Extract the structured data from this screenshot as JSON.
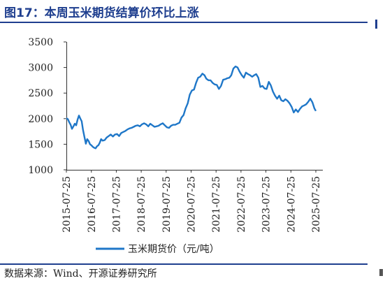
{
  "header": {
    "title": "图17：本周玉米期货结算价环比上涨"
  },
  "footer": {
    "source": "数据来源：Wind、开源证券研究所"
  },
  "chart_data": {
    "type": "line",
    "title": "图17：本周玉米期货结算价环比上涨",
    "xlabel": "",
    "ylabel": "",
    "ylim": [
      1000,
      3500
    ],
    "yticks": [
      "1000",
      "1500",
      "2000",
      "2500",
      "3000",
      "3500"
    ],
    "xlim": [
      "2015-07-25",
      "2025-07-25"
    ],
    "xticks": [
      "2015-07-25",
      "2016-07-25",
      "2017-07-25",
      "2018-07-25",
      "2019-07-25",
      "2020-07-25",
      "2021-07-25",
      "2022-07-25",
      "2023-07-25",
      "2024-07-25",
      "2025-07-25"
    ],
    "grid": false,
    "legend": "bottom",
    "series": [
      {
        "name": "玉米期货价（元/吨）",
        "color": "#1f77c8",
        "x": [
          "2015-07-25",
          "2015-08-15",
          "2015-09-05",
          "2015-09-25",
          "2015-10-15",
          "2015-11-05",
          "2015-11-25",
          "2015-12-15",
          "2016-01-05",
          "2016-01-25",
          "2016-02-15",
          "2016-03-05",
          "2016-03-25",
          "2016-04-15",
          "2016-05-05",
          "2016-05-25",
          "2016-06-15",
          "2016-07-05",
          "2016-07-25",
          "2016-08-15",
          "2016-09-05",
          "2016-09-25",
          "2016-10-15",
          "2016-11-05",
          "2016-11-25",
          "2016-12-15",
          "2017-01-05",
          "2017-02-05",
          "2017-03-05",
          "2017-04-05",
          "2017-05-05",
          "2017-06-05",
          "2017-07-05",
          "2017-08-05",
          "2017-09-05",
          "2017-10-05",
          "2017-11-05",
          "2017-12-05",
          "2018-01-05",
          "2018-02-05",
          "2018-03-05",
          "2018-04-05",
          "2018-05-05",
          "2018-06-05",
          "2018-07-05",
          "2018-08-05",
          "2018-09-05",
          "2018-10-05",
          "2018-11-05",
          "2018-12-05",
          "2019-01-05",
          "2019-02-05",
          "2019-03-05",
          "2019-04-05",
          "2019-05-05",
          "2019-06-05",
          "2019-07-05",
          "2019-08-05",
          "2019-09-05",
          "2019-10-05",
          "2019-11-05",
          "2019-12-05",
          "2020-01-05",
          "2020-02-05",
          "2020-03-05",
          "2020-04-05",
          "2020-05-05",
          "2020-06-05",
          "2020-07-05",
          "2020-08-05",
          "2020-09-05",
          "2020-10-05",
          "2020-11-05",
          "2020-12-05",
          "2021-01-05",
          "2021-02-05",
          "2021-03-05",
          "2021-04-05",
          "2021-05-05",
          "2021-06-05",
          "2021-07-05",
          "2021-08-05",
          "2021-09-05",
          "2021-10-05",
          "2021-11-05",
          "2021-12-05",
          "2022-01-05",
          "2022-02-05",
          "2022-03-05",
          "2022-04-05",
          "2022-05-05",
          "2022-06-05",
          "2022-07-05",
          "2022-08-05",
          "2022-09-05",
          "2022-10-05",
          "2022-11-05",
          "2022-12-05",
          "2023-01-05",
          "2023-02-05",
          "2023-03-05",
          "2023-04-05",
          "2023-05-05",
          "2023-06-05",
          "2023-07-05",
          "2023-08-05",
          "2023-09-05",
          "2023-10-05",
          "2023-11-05",
          "2023-12-05",
          "2024-01-05",
          "2024-02-05",
          "2024-03-05",
          "2024-04-05",
          "2024-05-05",
          "2024-06-05",
          "2024-07-05",
          "2024-08-05",
          "2024-09-05",
          "2024-10-05",
          "2024-11-05",
          "2024-12-05",
          "2025-01-05",
          "2025-02-05",
          "2025-03-05",
          "2025-04-05",
          "2025-05-05",
          "2025-06-05",
          "2025-07-05",
          "2025-07-25"
        ],
        "values": [
          2010,
          1990,
          1930,
          1880,
          1800,
          1850,
          1900,
          1870,
          1980,
          2060,
          2000,
          1950,
          1780,
          1640,
          1510,
          1600,
          1560,
          1500,
          1480,
          1450,
          1430,
          1420,
          1460,
          1480,
          1530,
          1600,
          1570,
          1580,
          1630,
          1660,
          1690,
          1650,
          1690,
          1700,
          1660,
          1720,
          1740,
          1760,
          1790,
          1810,
          1820,
          1840,
          1860,
          1870,
          1850,
          1890,
          1910,
          1890,
          1850,
          1900,
          1870,
          1840,
          1850,
          1860,
          1890,
          1910,
          1870,
          1830,
          1820,
          1860,
          1880,
          1880,
          1900,
          1920,
          2020,
          2070,
          2200,
          2300,
          2470,
          2550,
          2570,
          2700,
          2800,
          2820,
          2880,
          2850,
          2780,
          2750,
          2750,
          2700,
          2670,
          2660,
          2580,
          2640,
          2760,
          2770,
          2790,
          2800,
          2850,
          2980,
          3020,
          3000,
          2920,
          2850,
          2800,
          2900,
          2870,
          2850,
          2820,
          2850,
          2870,
          2800,
          2620,
          2640,
          2590,
          2580,
          2720,
          2650,
          2530,
          2450,
          2390,
          2450,
          2360,
          2340,
          2380,
          2350,
          2300,
          2230,
          2120,
          2180,
          2130,
          2190,
          2240,
          2260,
          2280,
          2330,
          2390,
          2320,
          2200,
          2150
        ]
      }
    ]
  }
}
